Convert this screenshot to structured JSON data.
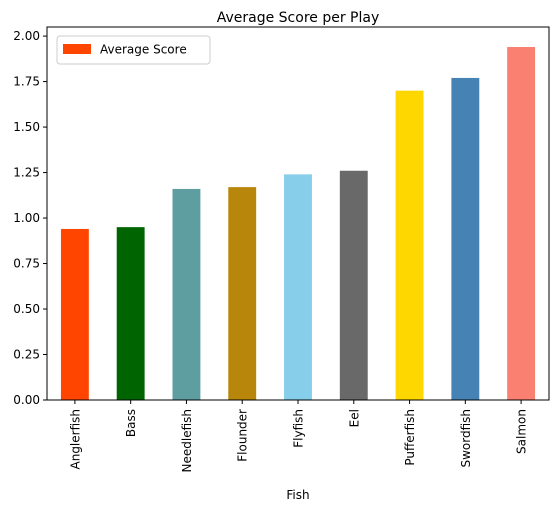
{
  "chart_data": {
    "type": "bar",
    "title": "Average Score per Play",
    "xlabel": "Fish",
    "ylabel": "",
    "ylim": [
      0,
      2.05
    ],
    "yticks": [
      "0.00",
      "0.25",
      "0.50",
      "0.75",
      "1.00",
      "1.25",
      "1.50",
      "1.75",
      "2.00"
    ],
    "grid": false,
    "legend": {
      "position": "top-left",
      "entries": [
        "Average Score"
      ],
      "swatch_color": "#ff4500"
    },
    "categories": [
      "Anglerfish",
      "Bass",
      "Needlefish",
      "Flounder",
      "Flyfish",
      "Eel",
      "Pufferfish",
      "Swordfish",
      "Salmon"
    ],
    "values": [
      0.94,
      0.95,
      1.16,
      1.17,
      1.24,
      1.26,
      1.7,
      1.77,
      1.94
    ],
    "colors": [
      "#ff4500",
      "#006400",
      "#5f9ea0",
      "#b8860b",
      "#87ceeb",
      "#696969",
      "#ffd700",
      "#4682b4",
      "#fa8072"
    ]
  }
}
